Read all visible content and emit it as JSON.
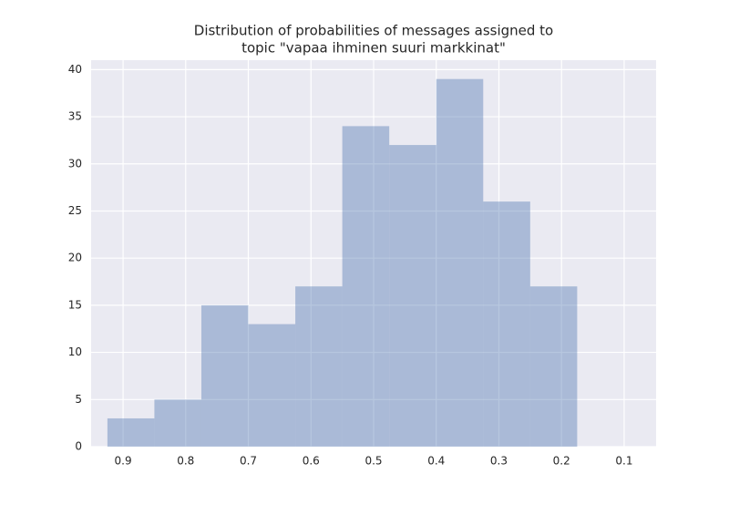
{
  "chart_data": {
    "type": "histogram",
    "title": [
      "Distribution of probabilities of messages assigned to",
      "topic \"vapaa ihminen suuri markkinat\""
    ],
    "bins": [
      0.925,
      0.85,
      0.775,
      0.7,
      0.625,
      0.55,
      0.475,
      0.4,
      0.325,
      0.25,
      0.175
    ],
    "values": [
      3,
      5,
      15,
      13,
      17,
      34,
      32,
      39,
      26,
      17
    ],
    "color": "#4c72b0",
    "opacity": 0.4,
    "xlim": [
      0.951,
      0.049
    ],
    "xticks": [
      0.9,
      0.8,
      0.7,
      0.6,
      0.5,
      0.4,
      0.3,
      0.2,
      0.1
    ],
    "ylim": [
      0,
      41
    ],
    "yticks": [
      0,
      5,
      10,
      15,
      20,
      25,
      30,
      35,
      40
    ],
    "grid": true,
    "background": "#eaeaf2"
  }
}
